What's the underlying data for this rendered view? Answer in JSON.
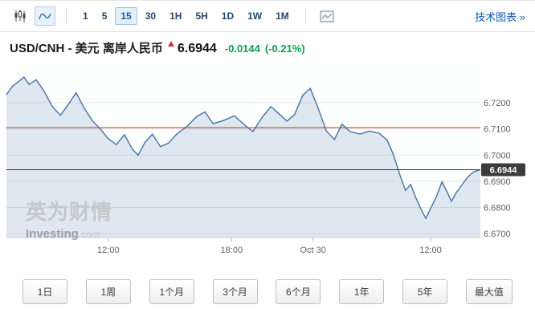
{
  "toolbar": {
    "chart_type_icons": [
      {
        "name": "candlestick-chart-icon",
        "selected": false
      },
      {
        "name": "area-chart-icon",
        "selected": true
      }
    ],
    "intervals": [
      {
        "label": "1",
        "selected": false
      },
      {
        "label": "5",
        "selected": false
      },
      {
        "label": "15",
        "selected": true
      },
      {
        "label": "30",
        "selected": false
      },
      {
        "label": "1H",
        "selected": false
      },
      {
        "label": "5H",
        "selected": false
      },
      {
        "label": "1D",
        "selected": false
      },
      {
        "label": "1W",
        "selected": false
      },
      {
        "label": "1M",
        "selected": false
      }
    ],
    "tech_chart_link": "技术图表 »"
  },
  "header": {
    "title": "USD/CNH - 美元 离岸人民币",
    "price": "6.6944",
    "change": "-0.0144",
    "change_pct": "(-0.21%)",
    "change_color": "#0f9d4f"
  },
  "watermark": {
    "line1": "英为财情",
    "line2": "Investing",
    "line2_suffix": ".com"
  },
  "ranges": [
    {
      "label": "1日"
    },
    {
      "label": "1周"
    },
    {
      "label": "1个月"
    },
    {
      "label": "3个月"
    },
    {
      "label": "6个月"
    },
    {
      "label": "1年"
    },
    {
      "label": "5年"
    },
    {
      "label": "最大值"
    }
  ],
  "chart_data": {
    "type": "area",
    "instrument": "USD/CNH",
    "interval": "15",
    "y_ticks": [
      {
        "value": 6.72,
        "label": "6.7200"
      },
      {
        "value": 6.71,
        "label": "6.7100"
      },
      {
        "value": 6.7,
        "label": "6.7000"
      },
      {
        "value": 6.69,
        "label": "6.6900"
      },
      {
        "value": 6.68,
        "label": "6.6800"
      },
      {
        "value": 6.67,
        "label": "6.6700"
      }
    ],
    "y_range": [
      6.6685,
      6.7335
    ],
    "x_ticks": [
      {
        "label": "12:00",
        "pos": 21.5
      },
      {
        "label": "18:00",
        "pos": 47.5
      },
      {
        "label": "Oct 30",
        "pos": 64.7
      },
      {
        "label": "12:00",
        "pos": 89.5
      }
    ],
    "last_price": 6.6944,
    "last_price_label": "6.6944",
    "resistance_level": 6.7105,
    "colors": {
      "line": "#4572a7",
      "fill": "rgba(69,114,167,0.16)",
      "grid": "#e6e6e6",
      "axis_line": "#cccccc",
      "tick": "#bbbbbb",
      "resistance_line": "#c0392b",
      "last_price_line": "#333333",
      "badge_bg": "#3c3c3c",
      "badge_text": "#ffffff",
      "axis_text": "#606060",
      "plot_bg": "#fdfefe"
    },
    "points": [
      [
        0,
        6.723
      ],
      [
        1.2,
        6.7262
      ],
      [
        2.5,
        6.728
      ],
      [
        3.7,
        6.7298
      ],
      [
        4.8,
        6.727
      ],
      [
        6.3,
        6.7288
      ],
      [
        8.0,
        6.7242
      ],
      [
        9.7,
        6.7185
      ],
      [
        11.4,
        6.7152
      ],
      [
        13.1,
        6.7195
      ],
      [
        14.7,
        6.7238
      ],
      [
        16.4,
        6.718
      ],
      [
        18.1,
        6.7132
      ],
      [
        19.8,
        6.71
      ],
      [
        21.5,
        6.7062
      ],
      [
        23.2,
        6.704
      ],
      [
        24.9,
        6.7078
      ],
      [
        26.6,
        6.7022
      ],
      [
        27.8,
        6.7
      ],
      [
        29.2,
        6.7048
      ],
      [
        30.8,
        6.708
      ],
      [
        32.5,
        6.7032
      ],
      [
        34.2,
        6.7046
      ],
      [
        35.9,
        6.708
      ],
      [
        38.0,
        6.7108
      ],
      [
        40.2,
        6.7148
      ],
      [
        41.9,
        6.7165
      ],
      [
        43.6,
        6.712
      ],
      [
        45.8,
        6.7132
      ],
      [
        48.1,
        6.715
      ],
      [
        50.3,
        6.7114
      ],
      [
        52.0,
        6.709
      ],
      [
        54.1,
        6.7148
      ],
      [
        55.8,
        6.7185
      ],
      [
        57.5,
        6.7158
      ],
      [
        59.2,
        6.713
      ],
      [
        60.8,
        6.7155
      ],
      [
        62.5,
        6.7228
      ],
      [
        64.1,
        6.7255
      ],
      [
        65.8,
        6.7178
      ],
      [
        67.5,
        6.7092
      ],
      [
        69.2,
        6.706
      ],
      [
        70.8,
        6.7118
      ],
      [
        72.5,
        6.709
      ],
      [
        74.6,
        6.708
      ],
      [
        76.6,
        6.7092
      ],
      [
        78.6,
        6.7084
      ],
      [
        80.3,
        6.7058
      ],
      [
        81.7,
        6.7
      ],
      [
        83.1,
        6.692
      ],
      [
        84.2,
        6.6865
      ],
      [
        85.3,
        6.6888
      ],
      [
        86.3,
        6.684
      ],
      [
        87.5,
        6.6792
      ],
      [
        88.5,
        6.6758
      ],
      [
        89.5,
        6.6796
      ],
      [
        90.7,
        6.684
      ],
      [
        91.9,
        6.6898
      ],
      [
        92.9,
        6.6862
      ],
      [
        93.9,
        6.6824
      ],
      [
        94.9,
        6.6856
      ],
      [
        96.1,
        6.6886
      ],
      [
        97.3,
        6.6916
      ],
      [
        98.6,
        6.6936
      ],
      [
        100,
        6.6944
      ]
    ]
  }
}
